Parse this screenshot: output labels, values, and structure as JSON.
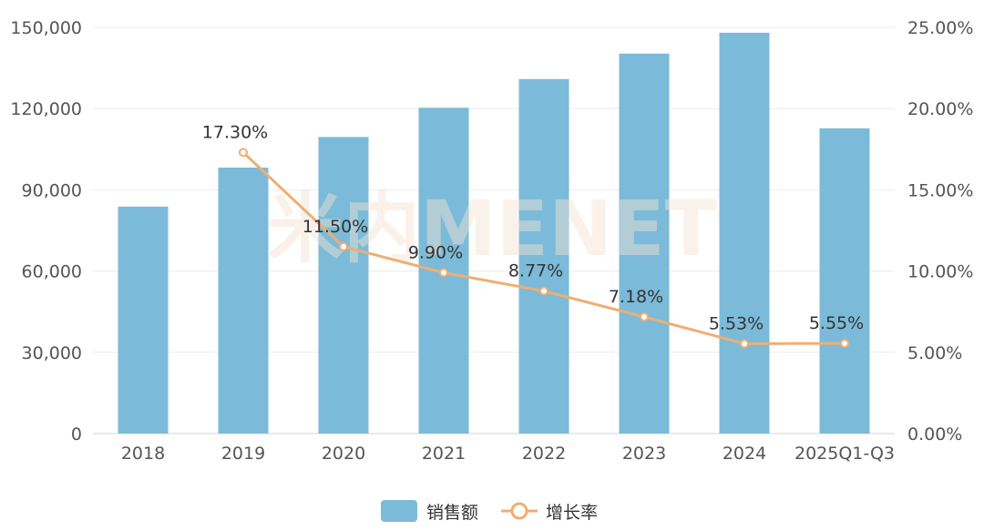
{
  "chart_data": {
    "type": "bar",
    "categories": [
      "2018",
      "2019",
      "2020",
      "2021",
      "2022",
      "2023",
      "2024",
      "2025Q1-Q3"
    ],
    "series": [
      {
        "name": "销售额",
        "type": "bar",
        "axis": "left",
        "color": "#7bbbd9",
        "values": [
          83800,
          98200,
          109500,
          120300,
          130900,
          140300,
          148000,
          112700
        ]
      },
      {
        "name": "增长率",
        "type": "line",
        "axis": "right",
        "color": "#efae73",
        "values": [
          null,
          17.3,
          11.5,
          9.9,
          8.77,
          7.18,
          5.53,
          5.55
        ],
        "labels": [
          "",
          "17.30%",
          "11.50%",
          "9.90%",
          "8.77%",
          "7.18%",
          "5.53%",
          "5.55%"
        ]
      }
    ],
    "y_left": {
      "ylim": [
        0,
        150000
      ],
      "ticks": [
        "0",
        "30,000",
        "60,000",
        "90,000",
        "120,000",
        "150,000"
      ]
    },
    "y_right": {
      "ylim": [
        0,
        25
      ],
      "ticks": [
        "0.00%",
        "5.00%",
        "10.00%",
        "15.00%",
        "20.00%",
        "25.00%"
      ]
    },
    "grid": true,
    "legend_position": "bottom-center",
    "watermark": "米内MENET"
  }
}
